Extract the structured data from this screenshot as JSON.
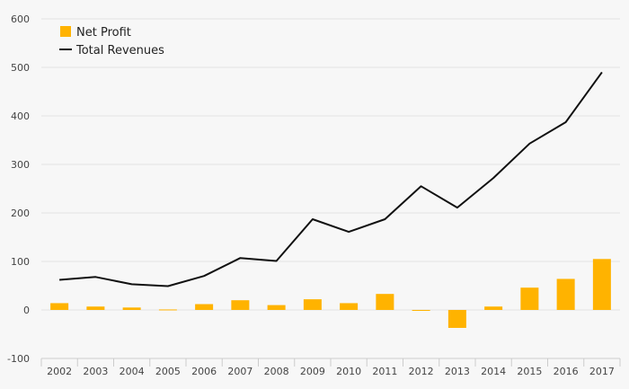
{
  "chart_data": {
    "type": "bar+line",
    "categories": [
      "2002",
      "2003",
      "2004",
      "2005",
      "2006",
      "2007",
      "2008",
      "2009",
      "2010",
      "2011",
      "2012",
      "2013",
      "2014",
      "2015",
      "2016",
      "2017"
    ],
    "series": [
      {
        "name": "Net Profit",
        "type": "bar",
        "color": "#ffb300",
        "values": [
          14,
          7,
          5,
          1,
          12,
          20,
          10,
          22,
          14,
          33,
          -1,
          -37,
          7,
          46,
          64,
          105
        ]
      },
      {
        "name": "Total Revenues",
        "type": "line",
        "color": "#111111",
        "values": [
          62,
          68,
          53,
          49,
          70,
          107,
          101,
          187,
          161,
          187,
          255,
          211,
          272,
          343,
          387,
          490
        ]
      }
    ],
    "y_ticks": [
      -100,
      0,
      100,
      200,
      300,
      400,
      500,
      600
    ],
    "ylim": [
      -100,
      600
    ],
    "grid": true,
    "legend_position": "top-left"
  }
}
